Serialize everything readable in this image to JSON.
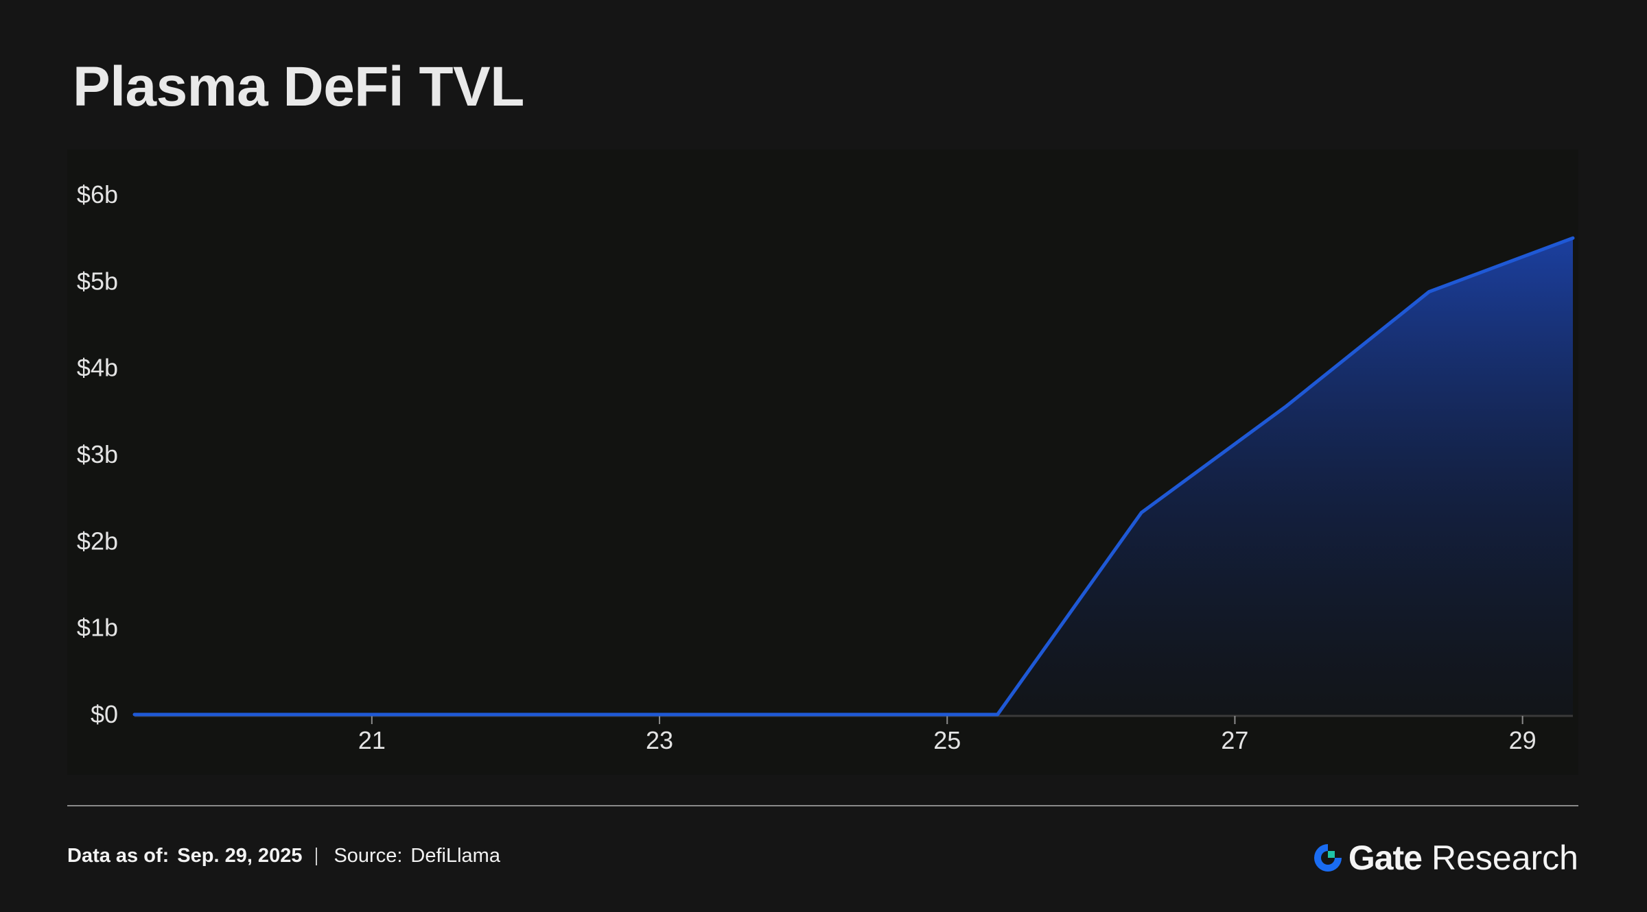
{
  "title": "Plasma DeFi TVL",
  "footer": {
    "date_label": "Data as of:",
    "date_value": "Sep. 29, 2025",
    "source_label": "Source:",
    "source_value": "DefiLlama"
  },
  "brand": {
    "name": "Gate",
    "suffix": "Research",
    "logo_icon": "gate-logo-icon",
    "logo_colors": [
      "#1a6cf2",
      "#1fc4a8"
    ]
  },
  "chart_data": {
    "type": "area",
    "title": "Plasma DeFi TVL",
    "xlabel": "",
    "ylabel": "",
    "x_ticks": [
      21,
      23,
      25,
      27,
      29
    ],
    "y_ticks": [
      "$0",
      "$1b",
      "$2b",
      "$3b",
      "$4b",
      "$5b",
      "$6b"
    ],
    "y_tick_values": [
      0,
      1,
      2,
      3,
      4,
      5,
      6
    ],
    "xlim": [
      19.35,
      29.35
    ],
    "ylim": [
      0,
      6
    ],
    "y_unit": "billion USD",
    "grid": false,
    "series": [
      {
        "color": "#1f59d6",
        "x": [
          19.35,
          20.35,
          21.35,
          22.35,
          23.35,
          24.35,
          25.35,
          26.35,
          27.35,
          28.35,
          29.35
        ],
        "y": [
          0,
          0,
          0,
          0,
          0,
          0,
          0,
          2.33,
          3.55,
          4.88,
          5.5
        ]
      }
    ]
  }
}
